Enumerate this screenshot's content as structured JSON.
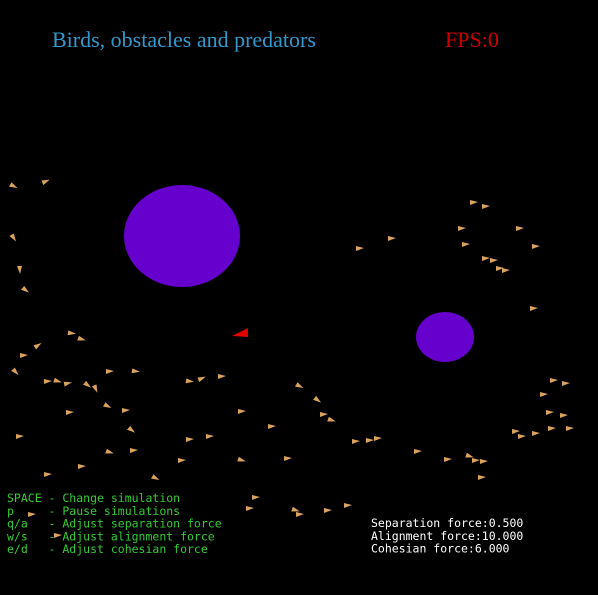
{
  "header": {
    "title": "Birds, obstacles and predators",
    "fps": "FPS:0"
  },
  "help": [
    "SPACE - Change simulation",
    "p     - Pause simulations",
    "q/a   - Adjust separation force",
    "w/s   - Adjust alignment force",
    "e/d   - Adjust cohesian force"
  ],
  "forces": [
    "Separation force:0.500",
    "Alignment force:10.000",
    "Cohesian force:6.000"
  ]
}
